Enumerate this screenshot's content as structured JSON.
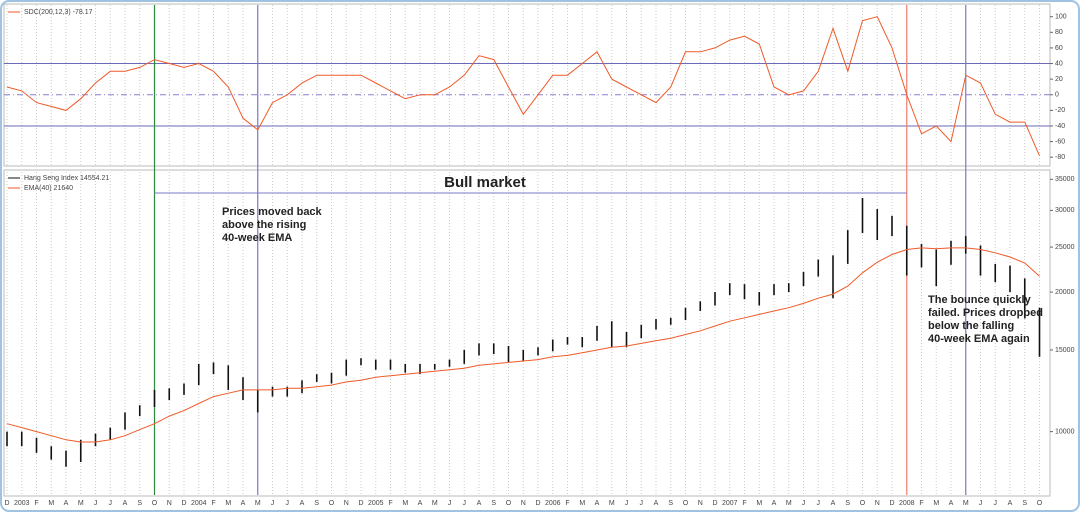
{
  "chart_data": [
    {
      "type": "line",
      "series": [
        {
          "name": "SDC(200,12,3) -78.17",
          "color": "#f05a28",
          "values": [
            10,
            5,
            -10,
            -15,
            -20,
            -5,
            15,
            30,
            30,
            35,
            45,
            40,
            35,
            40,
            30,
            10,
            -30,
            -45,
            -10,
            0,
            15,
            25,
            25,
            25,
            25,
            15,
            5,
            -5,
            0,
            0,
            10,
            25,
            50,
            45,
            10,
            -25,
            0,
            25,
            25,
            40,
            55,
            20,
            10,
            0,
            -10,
            10,
            55,
            55,
            60,
            70,
            75,
            65,
            10,
            0,
            5,
            30,
            85,
            30,
            95,
            100,
            60,
            0,
            -50,
            -40,
            -60,
            25,
            15,
            -25,
            -35,
            -35,
            -78.17
          ]
        }
      ],
      "ylim": [
        -90,
        115
      ],
      "yticks": [
        -80,
        -60,
        -40,
        -20,
        0,
        20,
        40,
        60,
        80,
        100
      ],
      "levels": [
        40,
        0,
        -40
      ],
      "grid": true
    },
    {
      "type": "range-bar",
      "categories": [
        "D",
        "2003",
        "F",
        "M",
        "A",
        "M",
        "J",
        "J",
        "A",
        "S",
        "O",
        "N",
        "D",
        "2004",
        "F",
        "M",
        "A",
        "M",
        "J",
        "J",
        "A",
        "S",
        "O",
        "N",
        "D",
        "2005",
        "F",
        "M",
        "A",
        "M",
        "J",
        "J",
        "A",
        "S",
        "O",
        "N",
        "D",
        "2006",
        "F",
        "M",
        "A",
        "M",
        "J",
        "J",
        "A",
        "S",
        "O",
        "N",
        "D",
        "2007",
        "F",
        "M",
        "A",
        "M",
        "J",
        "J",
        "A",
        "S",
        "O",
        "N",
        "D",
        "2008",
        "F",
        "M",
        "A",
        "M",
        "J",
        "J",
        "A",
        "S",
        "O"
      ],
      "series": [
        {
          "name": "Hang Seng Index 14554.21",
          "color": "#111111",
          "high": [
            10000,
            10000,
            9700,
            9300,
            9100,
            9600,
            9900,
            10200,
            11000,
            11400,
            12300,
            12400,
            12700,
            14000,
            14100,
            13900,
            13100,
            12300,
            12500,
            12500,
            12900,
            13300,
            13400,
            14300,
            14400,
            14300,
            14300,
            14000,
            14000,
            14000,
            14300,
            15000,
            15500,
            15500,
            15300,
            15000,
            15200,
            15800,
            16000,
            16000,
            16900,
            17300,
            16400,
            17000,
            17500,
            17600,
            18500,
            19100,
            20000,
            20900,
            20800,
            20000,
            20800,
            20900,
            22100,
            23500,
            24000,
            27200,
            31900,
            30200,
            29200,
            27800,
            25400,
            24700,
            25800,
            26400,
            25200,
            23000,
            22800,
            21400,
            18500
          ],
          "low": [
            9300,
            9300,
            9000,
            8700,
            8400,
            8600,
            9300,
            9600,
            10100,
            10800,
            11300,
            11700,
            12000,
            12600,
            13300,
            12300,
            11700,
            11000,
            11900,
            11900,
            12100,
            12800,
            12700,
            13200,
            13900,
            13600,
            13600,
            13400,
            13300,
            13600,
            13800,
            14000,
            14600,
            14700,
            14100,
            14200,
            14600,
            14900,
            15400,
            15200,
            15700,
            15200,
            15200,
            15900,
            16600,
            17000,
            17400,
            18200,
            18700,
            19700,
            19300,
            18700,
            19700,
            20000,
            20600,
            21600,
            19400,
            23000,
            26800,
            25900,
            26400,
            21700,
            22600,
            20600,
            22900,
            24200,
            21700,
            21000,
            20000,
            17600,
            14500
          ]
        },
        {
          "name": "EMA(40) 21640",
          "color": "#f05a28",
          "values": [
            10400,
            10200,
            10000,
            9800,
            9600,
            9500,
            9500,
            9600,
            9800,
            10100,
            10400,
            10800,
            11100,
            11500,
            11900,
            12100,
            12300,
            12300,
            12300,
            12400,
            12400,
            12500,
            12600,
            12800,
            12900,
            13100,
            13200,
            13300,
            13400,
            13500,
            13600,
            13700,
            13900,
            14000,
            14100,
            14200,
            14300,
            14500,
            14600,
            14800,
            15000,
            15200,
            15300,
            15500,
            15700,
            15900,
            16200,
            16500,
            16900,
            17300,
            17600,
            17900,
            18200,
            18500,
            18900,
            19400,
            19800,
            20600,
            22000,
            23200,
            24100,
            24700,
            24900,
            24800,
            24900,
            24900,
            24700,
            24300,
            23800,
            23100,
            21640
          ]
        }
      ],
      "ylim": [
        7300,
        36300
      ],
      "log_scale": true,
      "yticks": [
        10000,
        15000,
        20000,
        25000,
        30000,
        35000
      ],
      "vlines": [
        {
          "index": 10,
          "color": "#2e8b3e"
        },
        {
          "index": 17,
          "color": "#7b7bc8"
        },
        {
          "index": 61,
          "color": "#f08070"
        },
        {
          "index": 65,
          "color": "#7b7bc8"
        }
      ],
      "annotations": [
        {
          "lines": [
            "Bull market"
          ]
        },
        {
          "lines": [
            "Prices moved back",
            "above the rising",
            "40-week EMA"
          ]
        },
        {
          "lines": [
            "The bounce quickly",
            "failed. Prices dropped",
            "below the falling",
            "40-week EMA again"
          ]
        }
      ]
    }
  ]
}
